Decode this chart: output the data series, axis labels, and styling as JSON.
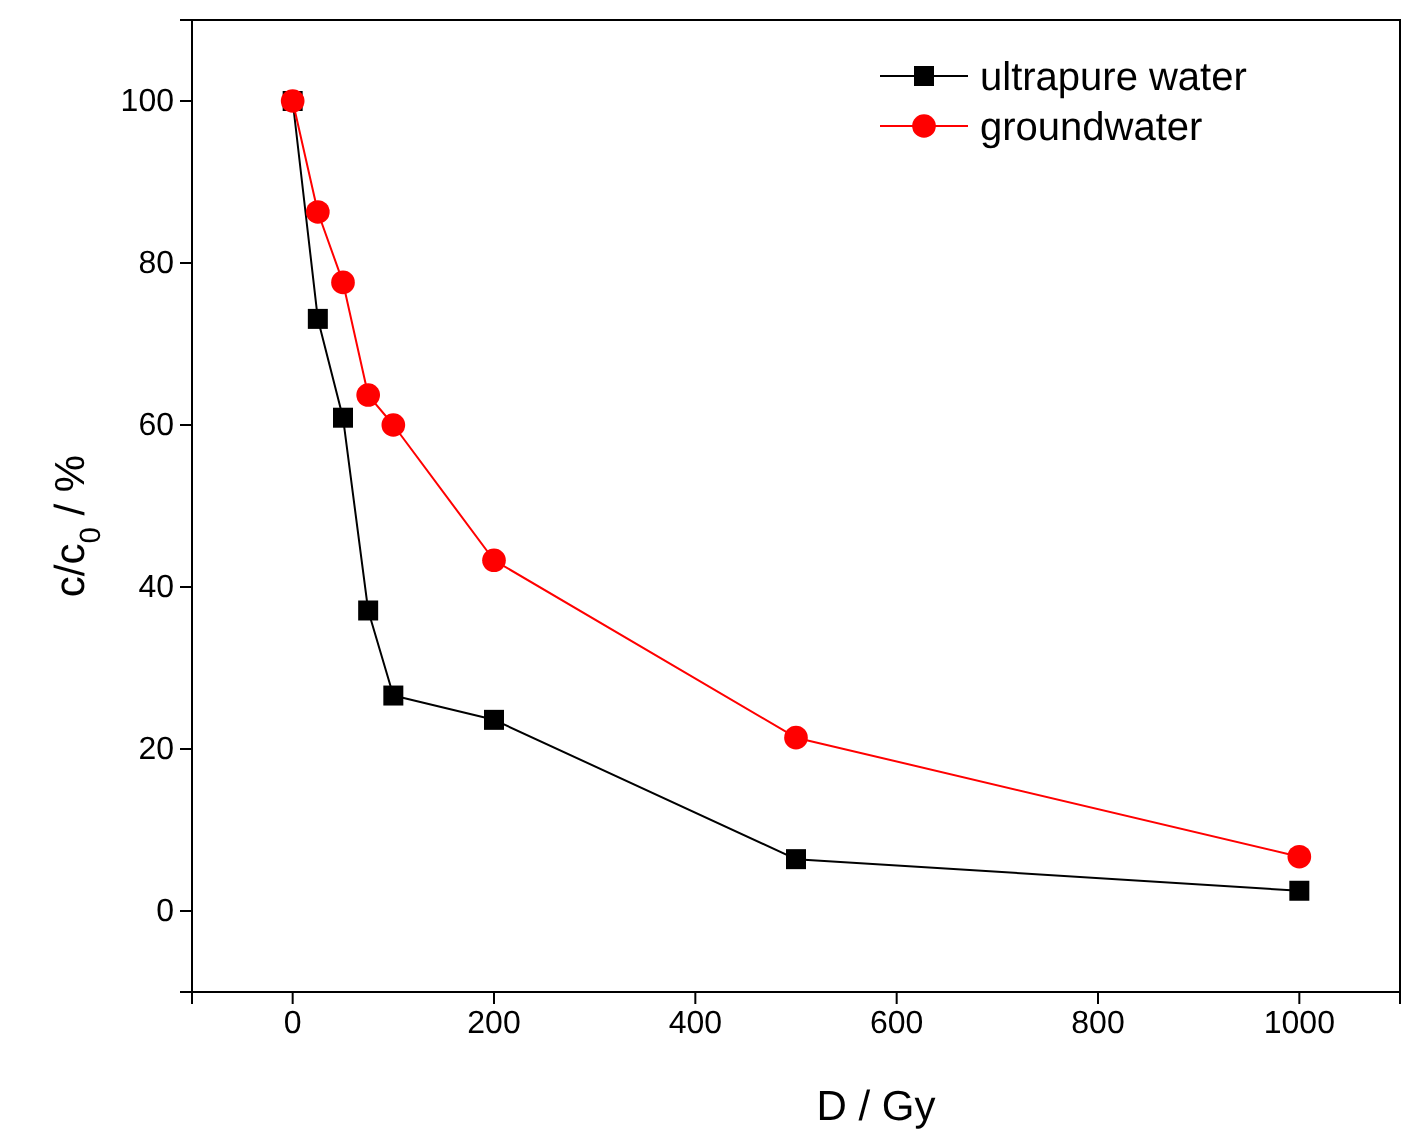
{
  "chart_data": {
    "type": "line",
    "xlabel": "D / Gy",
    "ylabel": "c/c$_{0}$ / %",
    "x": [
      0,
      25,
      50,
      75,
      100,
      200,
      500,
      1000
    ],
    "series": [
      {
        "name": "ultrapure water",
        "color": "#000000",
        "marker": "square",
        "values": [
          100,
          73.1,
          60.9,
          37.1,
          26.6,
          23.6,
          6.4,
          2.5
        ]
      },
      {
        "name": "groundwater",
        "color": "#ff0000",
        "marker": "circle",
        "values": [
          100,
          86.3,
          77.6,
          63.7,
          60,
          43.3,
          21.4,
          6.7
        ]
      }
    ],
    "xlim": [
      -100,
      1100
    ],
    "xticks": [
      0,
      200,
      400,
      600,
      800,
      1000
    ],
    "ylim": [
      -10,
      110
    ],
    "yticks": [
      0,
      20,
      40,
      60,
      80,
      100
    ],
    "grid": false,
    "legend": "top right",
    "line_style": "solid"
  }
}
